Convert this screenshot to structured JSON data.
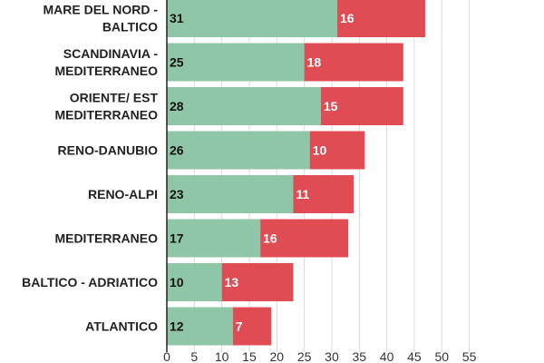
{
  "chart_data": {
    "type": "bar",
    "orientation": "horizontal",
    "stacked": true,
    "categories": [
      "MARE DEL NORD - BALTICO",
      "SCANDINAVIA - MEDITERRANEO",
      "ORIENTE/ EST MEDITERRANEO",
      "RENO-DANUBIO",
      "RENO-ALPI",
      "MEDITERRANEO",
      "BALTICO - ADRIATICO",
      "ATLANTICO"
    ],
    "category_lines": [
      [
        "MARE DEL NORD -",
        "BALTICO"
      ],
      [
        "SCANDINAVIA -",
        "MEDITERRANEO"
      ],
      [
        "ORIENTE/ EST",
        "MEDITERRANEO"
      ],
      [
        "RENO-DANUBIO"
      ],
      [
        "RENO-ALPI"
      ],
      [
        "MEDITERRANEO"
      ],
      [
        "BALTICO - ADRIATICO"
      ],
      [
        "ATLANTICO"
      ]
    ],
    "series": [
      {
        "values": [
          31,
          25,
          28,
          26,
          23,
          17,
          10,
          12
        ],
        "color": "#8fc6a8",
        "label_color": "#111111"
      },
      {
        "values": [
          16,
          18,
          15,
          10,
          11,
          16,
          13,
          7
        ],
        "color": "#e04c54",
        "label_color": "#ffffff"
      }
    ],
    "xlim": [
      0,
      55
    ],
    "x_ticks": [
      "0",
      "5",
      "10",
      "15",
      "20",
      "25",
      "30",
      "35",
      "40",
      "45",
      "50",
      "55"
    ],
    "grid": true,
    "title": "",
    "xlabel": "",
    "ylabel": ""
  }
}
